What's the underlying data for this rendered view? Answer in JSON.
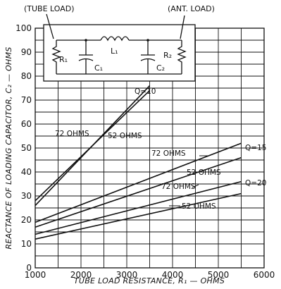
{
  "chart_data": {
    "type": "line",
    "xlabel": "TUBE LOAD RESISTANCE, R₁ — OHMS",
    "ylabel": "REACTANCE OF LOADING CAPACITOR, C₂ — OHMS",
    "xlim": [
      1000,
      6000
    ],
    "ylim": [
      0,
      100
    ],
    "x_ticks": [
      1000,
      2000,
      3000,
      4000,
      5000,
      6000
    ],
    "y_ticks": [
      0,
      10,
      20,
      30,
      40,
      50,
      60,
      70,
      80,
      90,
      100
    ],
    "x_tick_labels": [
      "1000",
      "2000",
      "3000",
      "4000",
      "5000",
      "6000"
    ],
    "y_tick_labels": [
      "0",
      "10",
      "20",
      "30",
      "40",
      "50",
      "60",
      "70",
      "80",
      "90",
      "100"
    ],
    "grid": true,
    "series": [
      {
        "q": "Q=10",
        "ohms": "72 OHMS",
        "x": [
          1000,
          3500
        ],
        "y": [
          28,
          74
        ]
      },
      {
        "q": "Q=10",
        "ohms": "52 OHMS",
        "x": [
          1000,
          3500
        ],
        "y": [
          26,
          76
        ]
      },
      {
        "q": "Q=15",
        "ohms": "72 OHMS",
        "x": [
          1000,
          5500
        ],
        "y": [
          19,
          52
        ]
      },
      {
        "q": "Q=15",
        "ohms": "52 OHMS",
        "x": [
          1000,
          5500
        ],
        "y": [
          17,
          46
        ]
      },
      {
        "q": "Q=20",
        "ohms": "72 OHMS",
        "x": [
          1000,
          5500
        ],
        "y": [
          14,
          36
        ]
      },
      {
        "q": "Q=20",
        "ohms": "52 OHMS",
        "x": [
          1000,
          5500
        ],
        "y": [
          12,
          31
        ]
      }
    ],
    "annotations": {
      "q10": "Q=10",
      "q15": "Q=15",
      "q20": "Q=20",
      "q10_72": "72 OHMS",
      "q10_52": "52 OHMS",
      "q15_72": "72 OHMS",
      "q15_52": "52 OHMS",
      "q20_72": "72 OHMS",
      "q20_52": "52 OHMS"
    },
    "inset": {
      "tube_load": "(TUBE LOAD)",
      "ant_load": "(ANT. LOAD)",
      "r1": "R₁",
      "c1": "C₁",
      "l1": "L₁",
      "c2": "C₂",
      "r2": "R₂"
    }
  }
}
